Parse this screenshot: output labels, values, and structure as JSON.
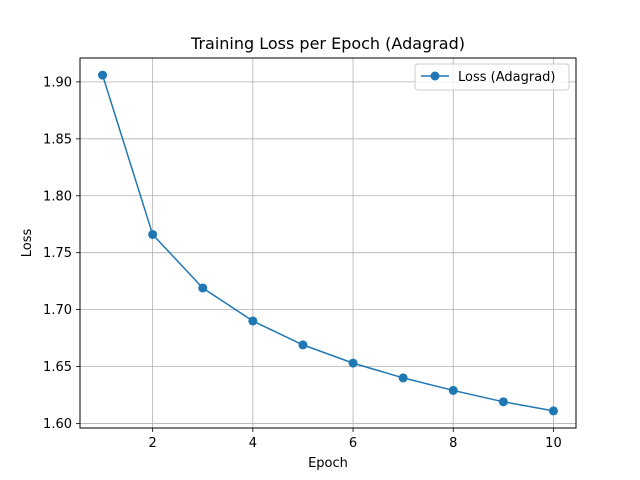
{
  "chart_data": {
    "type": "line",
    "title": "Training Loss per Epoch (Adagrad)",
    "xlabel": "Epoch",
    "ylabel": "Loss",
    "x": [
      1,
      2,
      3,
      4,
      5,
      6,
      7,
      8,
      9,
      10
    ],
    "series": [
      {
        "name": "Loss (Adagrad)",
        "values": [
          1.906,
          1.766,
          1.719,
          1.69,
          1.669,
          1.653,
          1.64,
          1.629,
          1.619,
          1.611
        ],
        "color": "#1f77b4",
        "marker": "circle"
      }
    ],
    "xlim": [
      0.55,
      10.45
    ],
    "ylim": [
      1.596,
      1.921
    ],
    "xticks": [
      2,
      4,
      6,
      8,
      10
    ],
    "xtick_labels": [
      "2",
      "4",
      "6",
      "8",
      "10"
    ],
    "yticks": [
      1.6,
      1.65,
      1.7,
      1.75,
      1.8,
      1.85,
      1.9
    ],
    "ytick_labels": [
      "1.60",
      "1.65",
      "1.70",
      "1.75",
      "1.80",
      "1.85",
      "1.90"
    ],
    "grid": true,
    "legend_position": "top-right"
  }
}
